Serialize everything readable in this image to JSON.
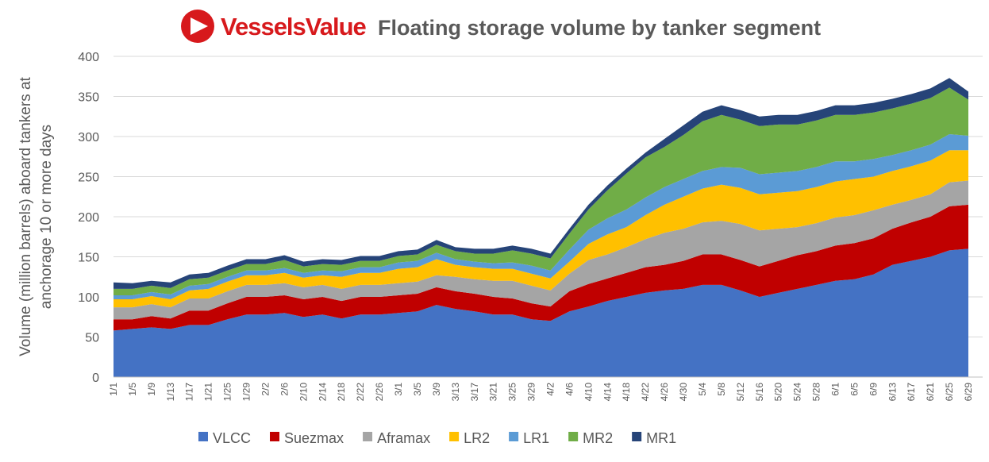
{
  "chart_data": {
    "type": "stacked-area",
    "brand": "VesselsValue",
    "title": "Floating storage volume by tanker segment",
    "y_label": [
      "Volume (million barrels) aboard tankers at",
      "anchorage  10 or more days"
    ],
    "categories": [
      "1/1",
      "1/5",
      "1/9",
      "1/13",
      "1/17",
      "1/21",
      "1/25",
      "1/29",
      "2/2",
      "2/6",
      "2/10",
      "2/14",
      "2/18",
      "2/22",
      "2/26",
      "3/1",
      "3/5",
      "3/9",
      "3/13",
      "3/17",
      "3/21",
      "3/25",
      "3/29",
      "4/2",
      "4/6",
      "4/10",
      "4/14",
      "4/18",
      "4/22",
      "4/26",
      "4/30",
      "5/4",
      "5/8",
      "5/12",
      "5/16",
      "5/20",
      "5/24",
      "5/28",
      "6/1",
      "6/5",
      "6/9",
      "6/13",
      "6/17",
      "6/21",
      "6/25",
      "6/29"
    ],
    "series": [
      {
        "name": "VLCC",
        "color": "#4472c4",
        "values": [
          58,
          60,
          62,
          60,
          65,
          65,
          72,
          78,
          78,
          80,
          75,
          78,
          73,
          78,
          78,
          80,
          82,
          90,
          85,
          82,
          78,
          78,
          72,
          70,
          82,
          88,
          95,
          100,
          105,
          108,
          110,
          115,
          115,
          108,
          100,
          105,
          110,
          115,
          120,
          122,
          128,
          140,
          145,
          150,
          158,
          160
        ]
      },
      {
        "name": "Suezmax",
        "color": "#c00000",
        "values": [
          14,
          12,
          14,
          13,
          18,
          18,
          20,
          22,
          22,
          22,
          22,
          22,
          22,
          22,
          22,
          22,
          22,
          22,
          22,
          22,
          22,
          20,
          20,
          18,
          25,
          28,
          28,
          30,
          32,
          32,
          35,
          38,
          38,
          38,
          38,
          40,
          42,
          42,
          44,
          45,
          45,
          45,
          48,
          50,
          55,
          55
        ]
      },
      {
        "name": "Aframax",
        "color": "#a5a5a5",
        "values": [
          15,
          15,
          15,
          14,
          15,
          15,
          15,
          15,
          15,
          15,
          15,
          15,
          15,
          15,
          15,
          15,
          15,
          15,
          18,
          18,
          20,
          22,
          22,
          20,
          22,
          30,
          30,
          32,
          35,
          40,
          40,
          40,
          42,
          45,
          45,
          40,
          35,
          35,
          35,
          35,
          35,
          30,
          28,
          28,
          30,
          30
        ]
      },
      {
        "name": "LR2",
        "color": "#ffc000",
        "values": [
          10,
          10,
          10,
          10,
          10,
          12,
          12,
          12,
          12,
          13,
          12,
          12,
          15,
          15,
          15,
          18,
          18,
          20,
          15,
          15,
          15,
          15,
          15,
          15,
          15,
          20,
          25,
          25,
          30,
          35,
          40,
          42,
          45,
          45,
          45,
          45,
          45,
          45,
          45,
          45,
          42,
          42,
          42,
          42,
          40,
          38
        ]
      },
      {
        "name": "LR1",
        "color": "#5b9bd5",
        "values": [
          5,
          5,
          5,
          6,
          6,
          6,
          6,
          6,
          6,
          6,
          6,
          6,
          7,
          7,
          7,
          8,
          8,
          8,
          7,
          7,
          7,
          8,
          10,
          10,
          15,
          18,
          20,
          22,
          22,
          22,
          22,
          22,
          22,
          25,
          25,
          25,
          25,
          25,
          25,
          22,
          22,
          20,
          20,
          20,
          20,
          18
        ]
      },
      {
        "name": "MR2",
        "color": "#70ad47",
        "values": [
          8,
          8,
          8,
          8,
          8,
          8,
          8,
          8,
          8,
          10,
          8,
          8,
          8,
          8,
          8,
          8,
          8,
          10,
          10,
          10,
          12,
          15,
          15,
          15,
          20,
          25,
          35,
          45,
          50,
          50,
          55,
          62,
          65,
          60,
          60,
          60,
          58,
          58,
          58,
          58,
          58,
          58,
          58,
          58,
          58,
          45
        ]
      },
      {
        "name": "MR1",
        "color": "#264478",
        "values": [
          8,
          7,
          6,
          7,
          6,
          6,
          6,
          6,
          6,
          6,
          6,
          6,
          6,
          6,
          6,
          6,
          6,
          6,
          5,
          6,
          6,
          6,
          6,
          6,
          6,
          6,
          6,
          6,
          6,
          10,
          12,
          12,
          12,
          12,
          12,
          12,
          12,
          12,
          12,
          12,
          12,
          12,
          12,
          12,
          12,
          10
        ]
      }
    ],
    "ylim": [
      0,
      400
    ],
    "yticks": [
      0,
      50,
      100,
      150,
      200,
      250,
      300,
      350,
      400
    ],
    "grid": true
  }
}
